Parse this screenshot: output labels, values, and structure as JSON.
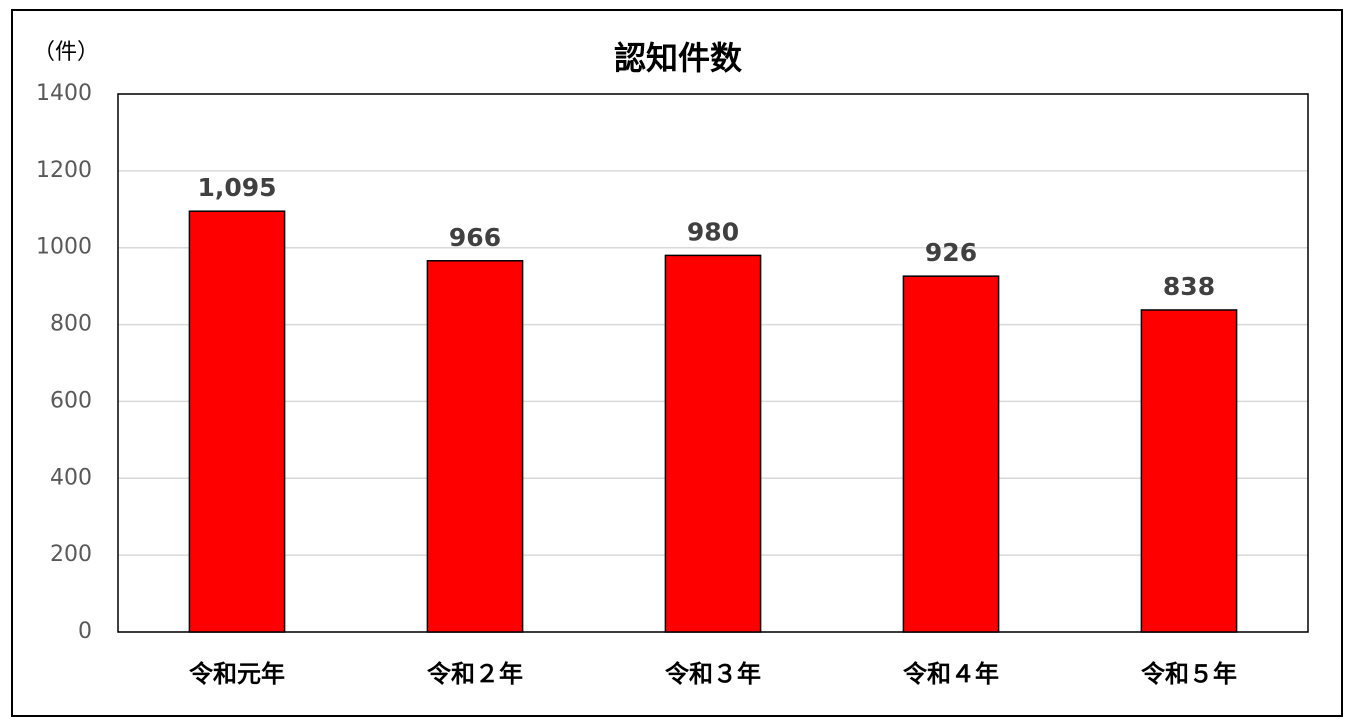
{
  "chart_data": {
    "type": "bar",
    "title": "認知件数",
    "y_unit_label": "（件）",
    "categories": [
      "令和元年",
      "令和２年",
      "令和３年",
      "令和４年",
      "令和５年"
    ],
    "values": [
      1095,
      966,
      980,
      926,
      838
    ],
    "value_labels": [
      "1,095",
      "966",
      "980",
      "926",
      "838"
    ],
    "color": "#ff0000",
    "ylim": [
      0,
      1400
    ],
    "yticks": [
      0,
      200,
      400,
      600,
      800,
      1000,
      1200,
      1400
    ],
    "grid": true
  }
}
